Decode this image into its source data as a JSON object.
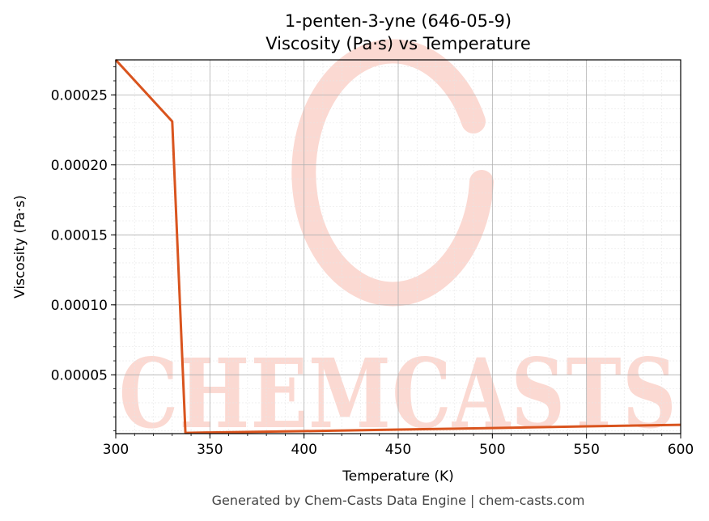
{
  "chart_data": {
    "type": "line",
    "title_line1": "1-penten-3-yne (646-05-9)",
    "title_line2": "Viscosity (Pa·s) vs Temperature",
    "xlabel": "Temperature (K)",
    "ylabel": "Viscosity (Pa·s)",
    "xlim": [
      300,
      600
    ],
    "ylim": [
      8e-06,
      0.000275
    ],
    "x_ticks": [
      300,
      350,
      400,
      450,
      500,
      550,
      600
    ],
    "x_tick_labels": [
      "300",
      "350",
      "400",
      "450",
      "500",
      "550",
      "600"
    ],
    "y_ticks": [
      5e-05,
      0.0001,
      0.00015,
      0.0002,
      0.00025
    ],
    "y_tick_labels": [
      "0.00005",
      "0.00010",
      "0.00015",
      "0.00020",
      "0.00025"
    ],
    "grid": true,
    "series": [
      {
        "color": "#d9541e",
        "x": [
          300,
          330,
          337,
          350,
          400,
          450,
          500,
          550,
          600
        ],
        "y": [
          0.000275,
          0.000231,
          8.5e-06,
          8.8e-06,
          9.8e-06,
          1.09e-05,
          1.2e-05,
          1.32e-05,
          1.43e-05
        ]
      }
    ]
  },
  "watermark": {
    "text": "CHEMCASTS",
    "color": "#fbd9d2"
  },
  "footer": "Generated by Chem-Casts Data Engine | chem-casts.com"
}
